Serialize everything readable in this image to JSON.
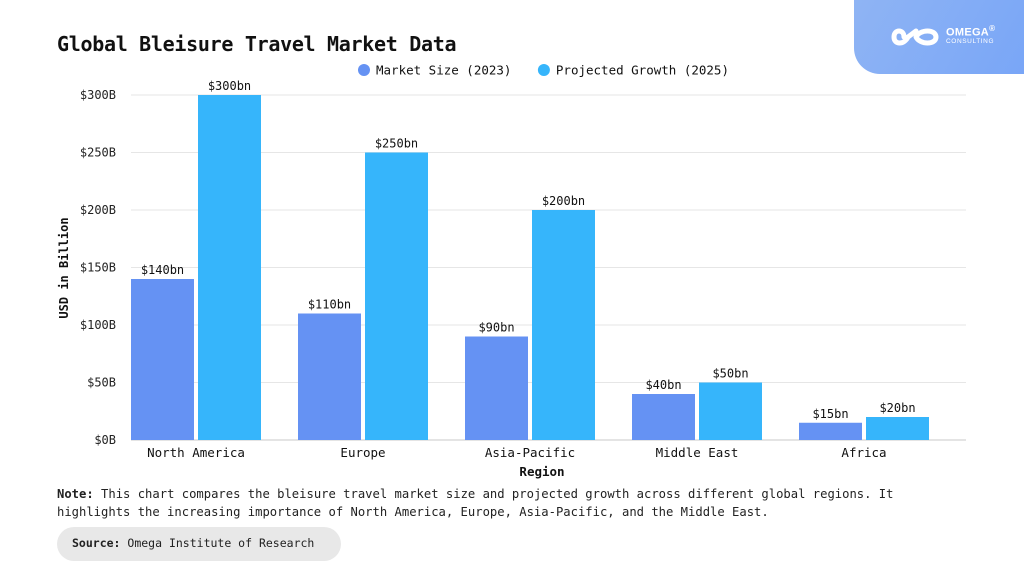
{
  "brand": {
    "name": "OMEGA",
    "registered": "®",
    "tagline": "CONSULTING"
  },
  "note": {
    "label": "Note:",
    "line1": "This chart compares the bleisure travel market size and projected growth across different global regions. It",
    "line2": "highlights the increasing importance of North America, Europe, Asia-Pacific, and the Middle East."
  },
  "source": {
    "label": "Source:",
    "text": "Omega Institute of Research"
  },
  "chart_data": {
    "type": "bar",
    "title": "Global Bleisure Travel Market Data",
    "xlabel": "Region",
    "ylabel": "USD in Billion",
    "categories": [
      "North America",
      "Europe",
      "Asia-Pacific",
      "Middle East",
      "Africa"
    ],
    "series": [
      {
        "name": "Market Size (2023)",
        "values": [
          140,
          110,
          90,
          40,
          15
        ],
        "labels": [
          "$140bn",
          "$110bn",
          "$90bn",
          "$40bn",
          "$15bn"
        ],
        "color": "#6592f3"
      },
      {
        "name": "Projected Growth (2025)",
        "values": [
          300,
          250,
          200,
          50,
          20
        ],
        "labels": [
          "$300bn",
          "$250bn",
          "$200bn",
          "$50bn",
          "$20bn"
        ],
        "color": "#36b5fb"
      }
    ],
    "ylim": [
      0,
      300
    ],
    "yticks": [
      0,
      50,
      100,
      150,
      200,
      250,
      300
    ],
    "ytick_labels": [
      "$0B",
      "$50B",
      "$100B",
      "$150B",
      "$200B",
      "$250B",
      "$300B"
    ],
    "grid": true,
    "legend_position": "top-center"
  }
}
